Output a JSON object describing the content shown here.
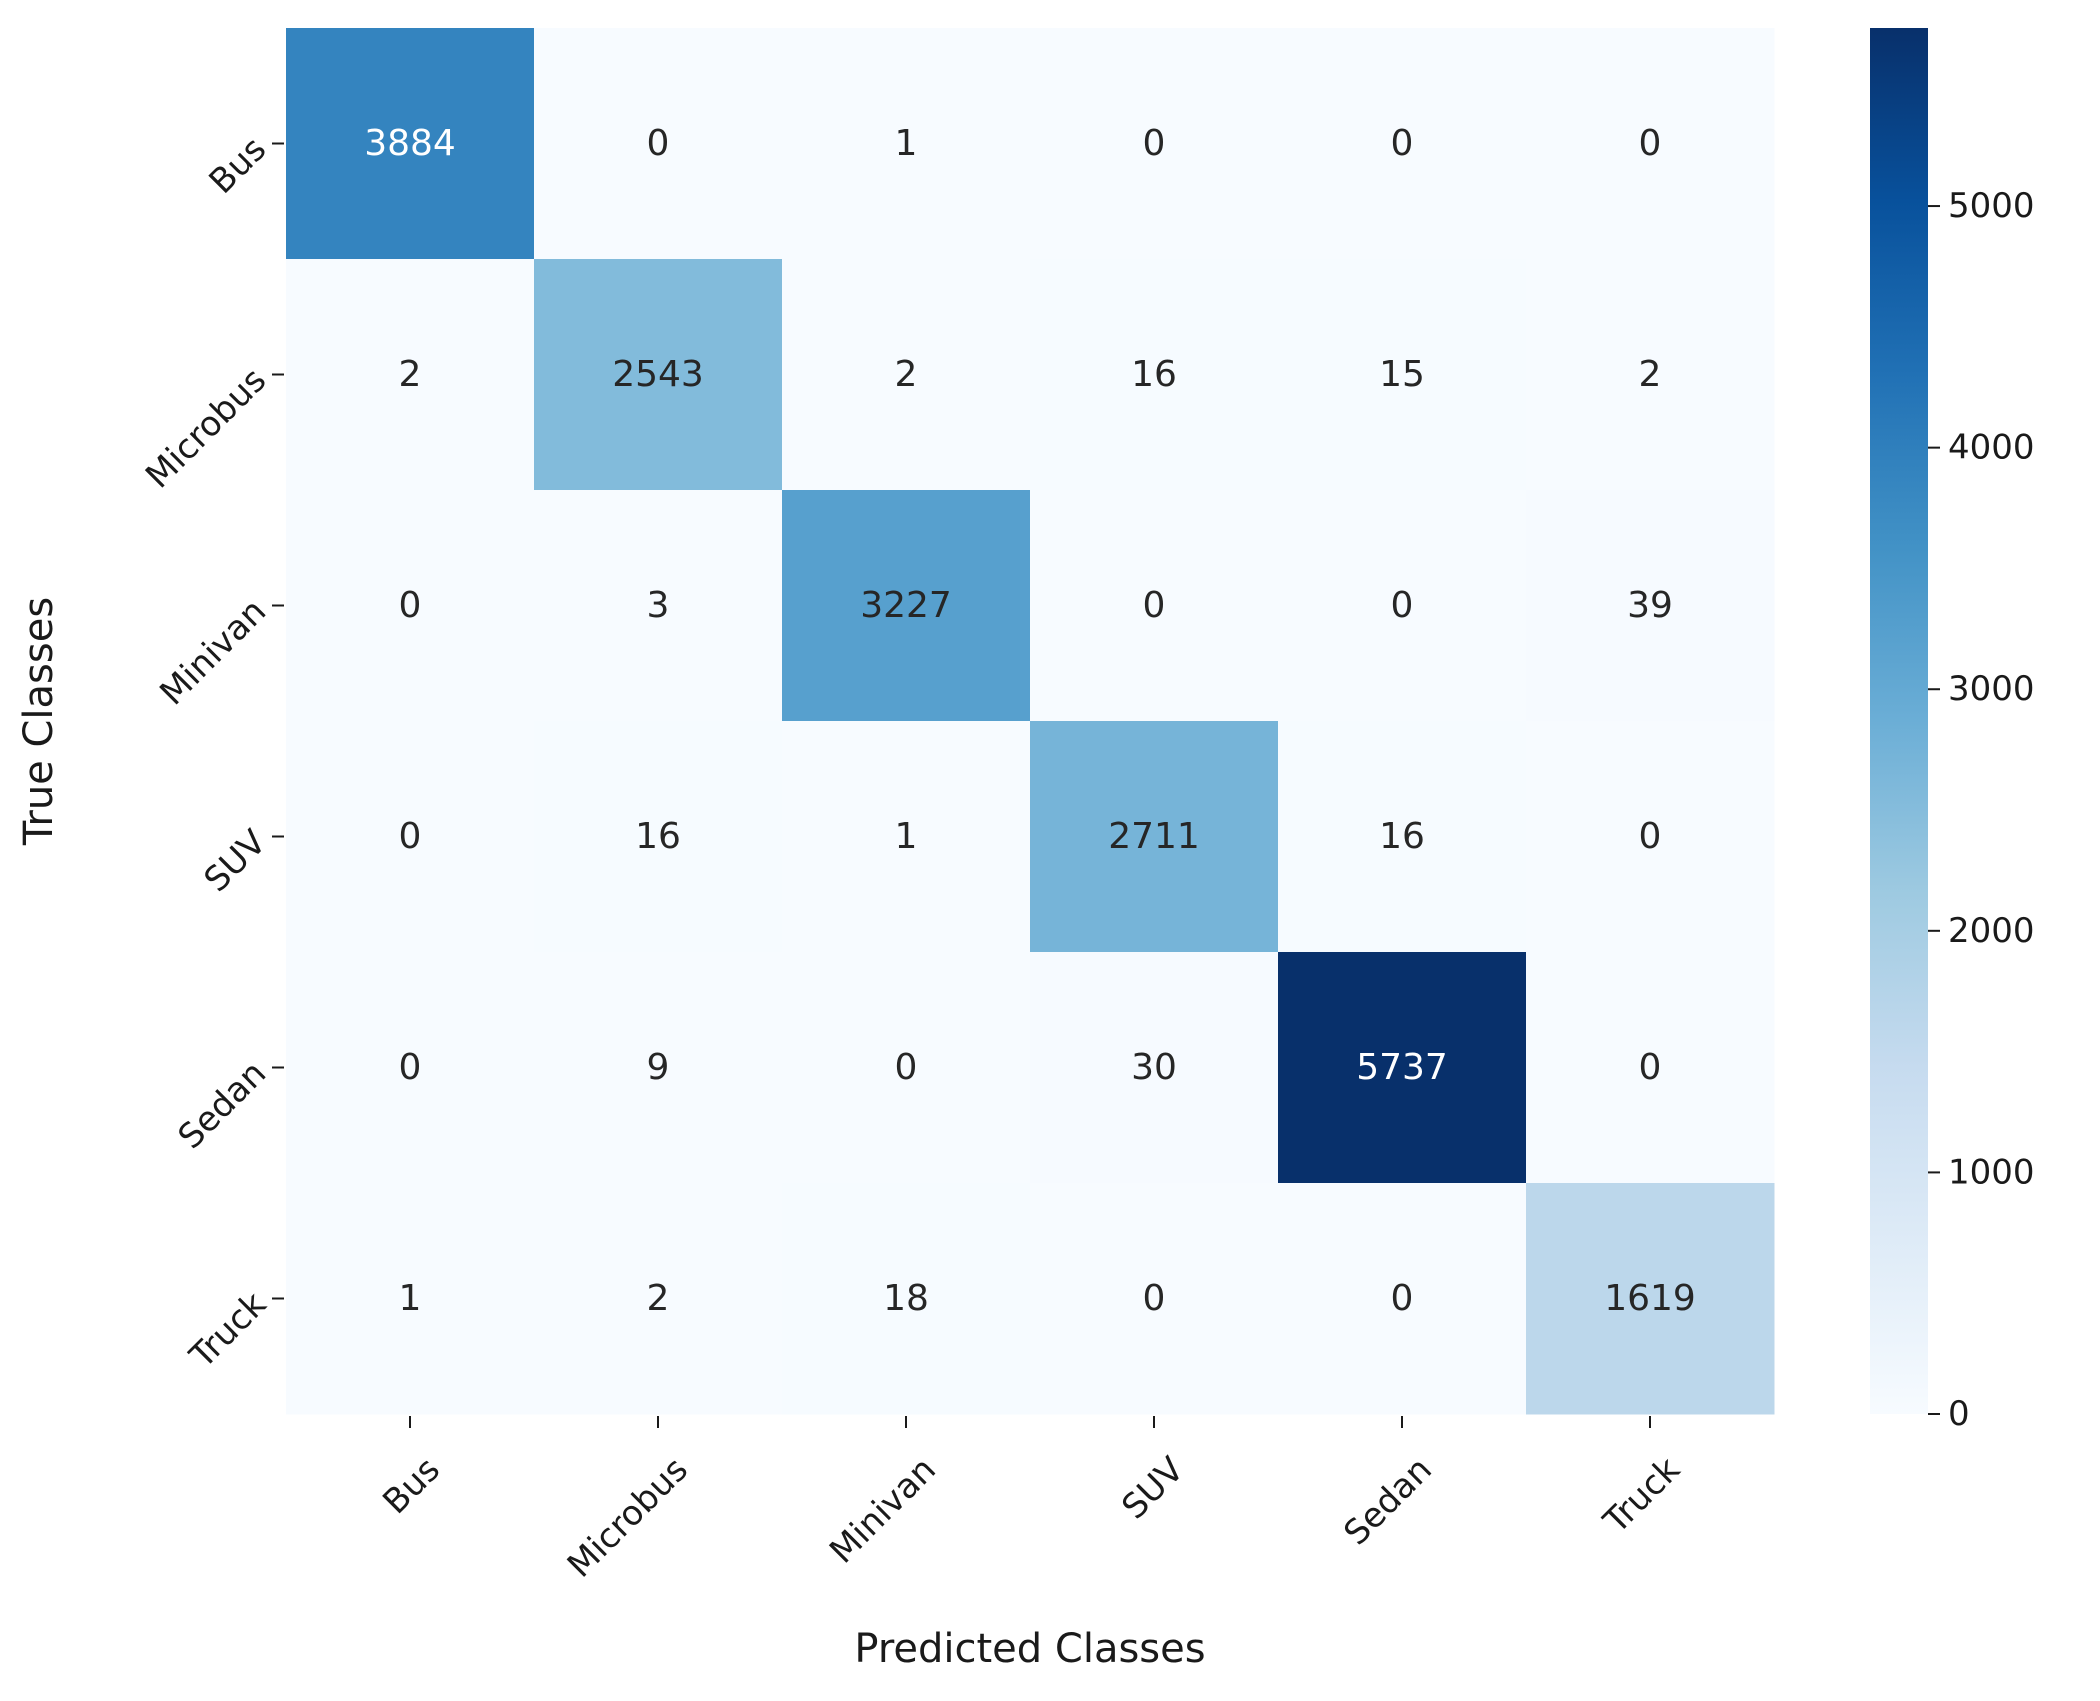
{
  "chart_data": {
    "type": "heatmap",
    "title": "",
    "xlabel": "Predicted Classes",
    "ylabel": "True Classes",
    "x_categories": [
      "Bus",
      "Microbus",
      "Minivan",
      "SUV",
      "Sedan",
      "Truck"
    ],
    "y_categories": [
      "Bus",
      "Microbus",
      "Minivan",
      "SUV",
      "Sedan",
      "Truck"
    ],
    "values": [
      [
        3884,
        0,
        1,
        0,
        0,
        0
      ],
      [
        2,
        2543,
        2,
        16,
        15,
        2
      ],
      [
        0,
        3,
        3227,
        0,
        0,
        39
      ],
      [
        0,
        16,
        1,
        2711,
        16,
        0
      ],
      [
        0,
        9,
        0,
        30,
        5737,
        0
      ],
      [
        1,
        2,
        18,
        0,
        0,
        1619
      ]
    ],
    "colormap": "Blues",
    "colorbar": {
      "range": [
        0,
        5737
      ],
      "ticks": [
        0,
        1000,
        2000,
        3000,
        4000,
        5000
      ]
    },
    "annotations": true,
    "grid": false
  }
}
